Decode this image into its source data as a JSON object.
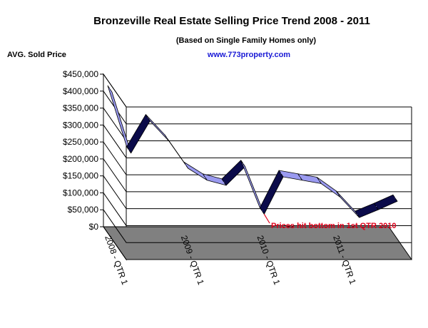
{
  "chart_data": {
    "type": "line",
    "title": "Bronzeville Real Estate Selling Price Trend  2008 - 2011",
    "subtitle": "(Based on Single Family Homes only)",
    "source_link": "www.773property.com",
    "ylabel": "AVG. Sold Price",
    "xlabel": "",
    "ylim": [
      0,
      450000
    ],
    "y_ticks": [
      "$0",
      "$50,000",
      "$100,000",
      "$150,000",
      "$200,000",
      "$250,000",
      "$300,000",
      "$350,000",
      "$400,000",
      "$450,000"
    ],
    "x_tick_labels": [
      "2008 - QTR 1",
      "2009 - QTR 1",
      "2010 - QTR 1",
      "2011 - QTR 1"
    ],
    "x_tick_label_indices": [
      0,
      4,
      8,
      12
    ],
    "grid": true,
    "style": "3d-ribbon",
    "series_color": "#9a9af0",
    "values": [
      435000,
      255000,
      350000,
      290000,
      210000,
      175000,
      160000,
      215000,
      75000,
      185000,
      175000,
      165000,
      125000,
      65000,
      88000,
      113000
    ],
    "annotation": {
      "text": "Prices hit bottom in 1st QTR 2010",
      "target_index": 8,
      "color": "#e0001b"
    }
  }
}
